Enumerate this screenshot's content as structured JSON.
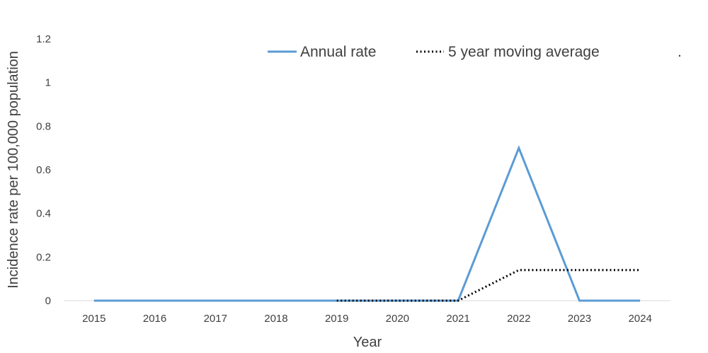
{
  "chart_data": {
    "type": "line",
    "x": [
      "2015",
      "2016",
      "2017",
      "2018",
      "2019",
      "2020",
      "2021",
      "2022",
      "2023",
      "2024"
    ],
    "series": [
      {
        "name": "Annual rate",
        "color": "#5B9BD5",
        "style": "solid",
        "values": [
          0,
          0,
          0,
          0,
          0,
          0,
          0,
          0.7,
          0,
          0
        ]
      },
      {
        "name": "5 year moving average",
        "color": "#000000",
        "style": "dotted",
        "values": [
          null,
          null,
          null,
          null,
          0,
          0,
          0,
          0.14,
          0.14,
          0.14
        ]
      }
    ],
    "xlabel": "Year",
    "ylabel": "Incidence rate per 100,000 population",
    "ylim": [
      0,
      1.2
    ],
    "yticks": [
      "0",
      "0.2",
      "0.4",
      "0.6",
      "0.8",
      "1",
      "1.2"
    ],
    "grid": false,
    "legend_position": "top",
    "legend_trailing_mark": "."
  }
}
